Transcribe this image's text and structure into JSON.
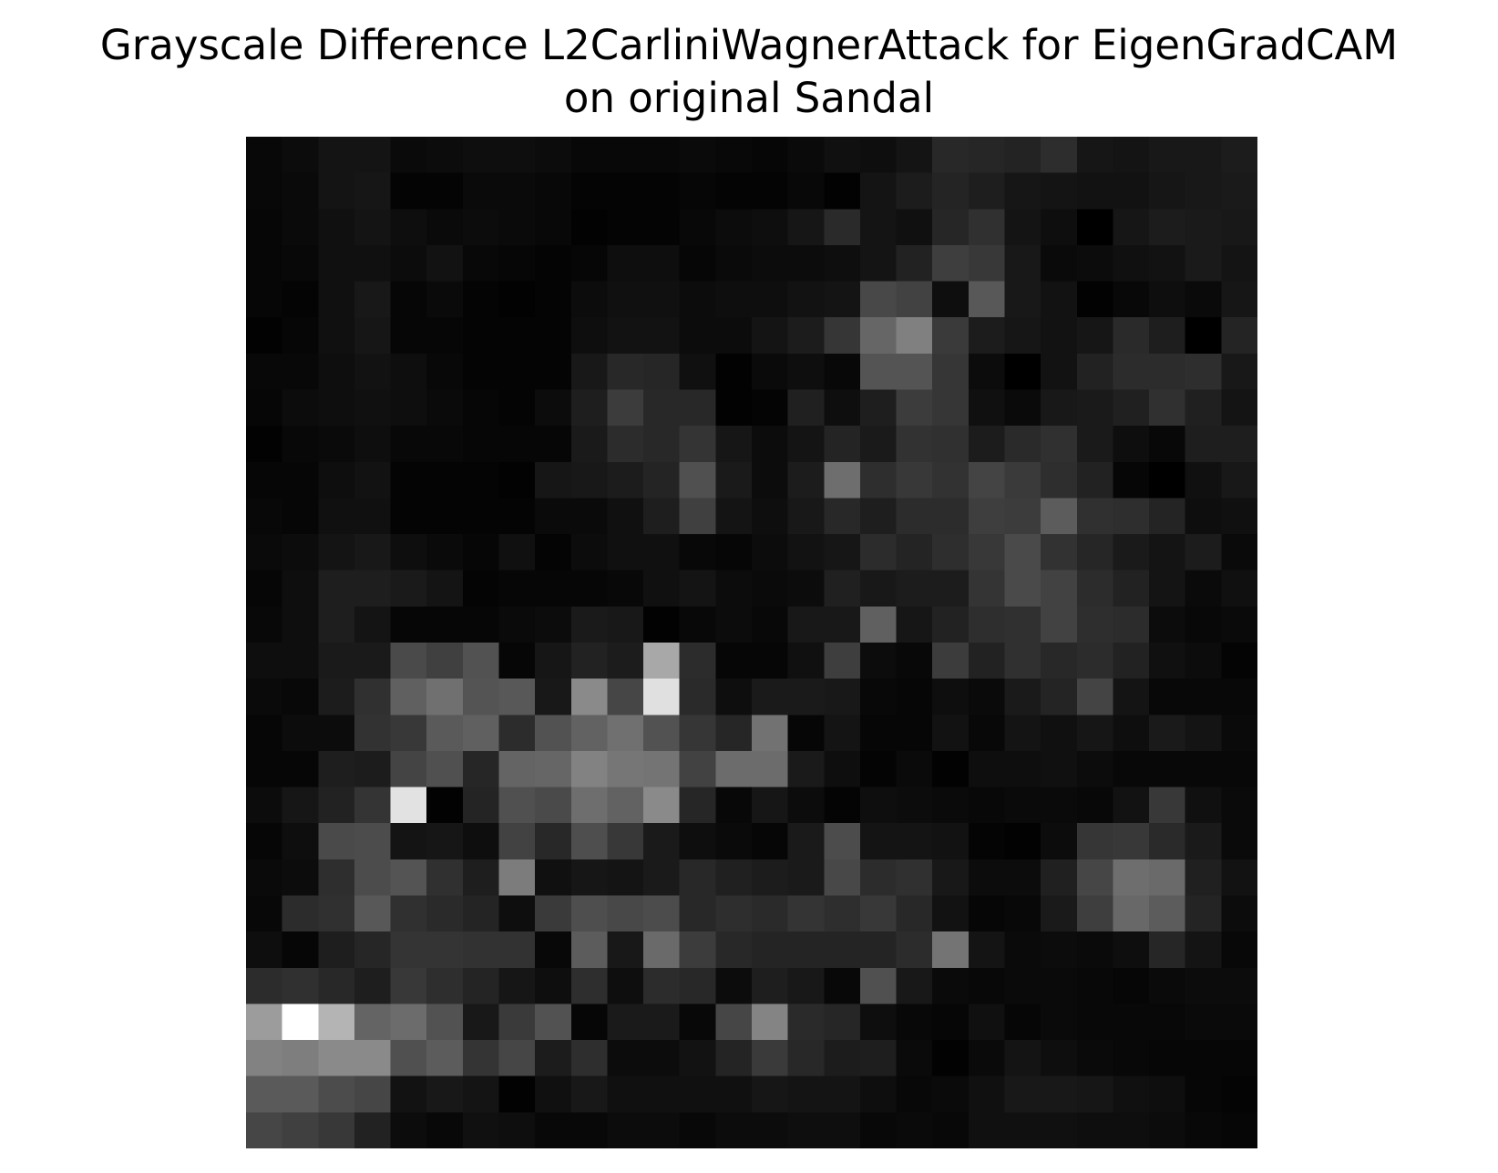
{
  "title_lines": [
    "Grayscale Difference L2CarliniWagnerAttack for EigenGradCAM",
    "on original Sandal"
  ],
  "chart_data": {
    "type": "heatmap",
    "title": "Grayscale Difference L2CarliniWagnerAttack for EigenGradCAM on original Sandal",
    "colormap": "gray",
    "axes_visible": false,
    "rows": 28,
    "cols": 28,
    "value_range": [
      0,
      255
    ],
    "values": [
      [
        8,
        12,
        20,
        20,
        10,
        12,
        14,
        14,
        12,
        8,
        8,
        8,
        10,
        8,
        6,
        10,
        16,
        14,
        20,
        40,
        38,
        35,
        45,
        22,
        20,
        24,
        24,
        28
      ],
      [
        8,
        10,
        20,
        22,
        4,
        4,
        10,
        10,
        8,
        4,
        4,
        4,
        6,
        4,
        4,
        8,
        2,
        20,
        28,
        36,
        30,
        22,
        20,
        18,
        18,
        22,
        24,
        26
      ],
      [
        6,
        10,
        16,
        20,
        14,
        10,
        12,
        10,
        8,
        2,
        4,
        4,
        8,
        12,
        14,
        22,
        42,
        20,
        16,
        38,
        48,
        20,
        14,
        0,
        22,
        28,
        26,
        24
      ],
      [
        6,
        8,
        16,
        16,
        12,
        18,
        8,
        6,
        4,
        6,
        14,
        14,
        6,
        10,
        12,
        12,
        14,
        20,
        34,
        62,
        56,
        24,
        10,
        12,
        16,
        18,
        26,
        20
      ],
      [
        6,
        4,
        16,
        24,
        6,
        10,
        4,
        2,
        4,
        12,
        16,
        16,
        12,
        14,
        14,
        18,
        20,
        72,
        66,
        14,
        88,
        24,
        18,
        2,
        8,
        14,
        10,
        22
      ],
      [
        2,
        6,
        16,
        22,
        6,
        6,
        4,
        4,
        4,
        14,
        18,
        18,
        12,
        12,
        20,
        28,
        54,
        102,
        128,
        58,
        28,
        22,
        18,
        22,
        42,
        30,
        0,
        36
      ],
      [
        8,
        8,
        14,
        18,
        14,
        8,
        4,
        4,
        4,
        24,
        40,
        38,
        16,
        2,
        10,
        14,
        8,
        84,
        84,
        54,
        12,
        0,
        18,
        34,
        44,
        44,
        46,
        24
      ],
      [
        6,
        12,
        14,
        16,
        14,
        10,
        6,
        4,
        12,
        30,
        60,
        40,
        40,
        2,
        4,
        32,
        14,
        30,
        60,
        54,
        16,
        10,
        24,
        26,
        32,
        48,
        32,
        20
      ],
      [
        2,
        8,
        10,
        14,
        8,
        8,
        6,
        6,
        6,
        26,
        44,
        40,
        52,
        22,
        12,
        20,
        36,
        26,
        50,
        48,
        28,
        42,
        48,
        26,
        14,
        8,
        30,
        30
      ],
      [
        6,
        6,
        14,
        18,
        4,
        4,
        4,
        2,
        22,
        24,
        28,
        36,
        80,
        26,
        12,
        28,
        110,
        46,
        56,
        50,
        68,
        58,
        46,
        34,
        6,
        0,
        16,
        24
      ],
      [
        8,
        6,
        16,
        16,
        4,
        4,
        4,
        4,
        10,
        10,
        16,
        30,
        64,
        20,
        14,
        24,
        40,
        30,
        44,
        44,
        62,
        60,
        92,
        48,
        46,
        36,
        14,
        16
      ],
      [
        10,
        12,
        20,
        24,
        14,
        10,
        6,
        16,
        4,
        12,
        16,
        16,
        8,
        6,
        12,
        18,
        22,
        44,
        36,
        46,
        56,
        74,
        50,
        38,
        26,
        20,
        28,
        10
      ],
      [
        6,
        14,
        30,
        30,
        26,
        20,
        4,
        6,
        6,
        6,
        8,
        16,
        20,
        12,
        10,
        12,
        32,
        24,
        28,
        28,
        52,
        74,
        66,
        44,
        34,
        20,
        10,
        16
      ],
      [
        8,
        14,
        30,
        20,
        6,
        6,
        6,
        10,
        12,
        26,
        24,
        2,
        8,
        12,
        8,
        24,
        24,
        96,
        22,
        34,
        46,
        48,
        66,
        46,
        44,
        12,
        8,
        10
      ],
      [
        14,
        14,
        26,
        26,
        74,
        64,
        82,
        6,
        22,
        34,
        28,
        168,
        44,
        6,
        6,
        16,
        62,
        12,
        8,
        60,
        34,
        48,
        40,
        44,
        34,
        16,
        12,
        4
      ],
      [
        10,
        8,
        28,
        48,
        96,
        112,
        84,
        88,
        24,
        138,
        70,
        224,
        42,
        14,
        26,
        26,
        24,
        8,
        6,
        14,
        10,
        26,
        36,
        68,
        20,
        8,
        8,
        8
      ],
      [
        6,
        12,
        12,
        50,
        56,
        90,
        96,
        44,
        82,
        98,
        112,
        82,
        54,
        38,
        114,
        6,
        20,
        6,
        6,
        18,
        8,
        20,
        16,
        22,
        14,
        26,
        20,
        10
      ],
      [
        6,
        6,
        30,
        28,
        68,
        80,
        38,
        100,
        102,
        130,
        118,
        116,
        66,
        108,
        108,
        26,
        14,
        4,
        10,
        2,
        14,
        14,
        16,
        12,
        8,
        8,
        8,
        8
      ],
      [
        12,
        22,
        34,
        52,
        226,
        2,
        36,
        80,
        74,
        110,
        98,
        138,
        38,
        8,
        22,
        12,
        4,
        14,
        12,
        10,
        8,
        10,
        10,
        8,
        18,
        56,
        16,
        10
      ],
      [
        6,
        14,
        74,
        76,
        20,
        22,
        14,
        66,
        40,
        78,
        56,
        26,
        14,
        10,
        6,
        26,
        76,
        20,
        20,
        18,
        4,
        2,
        12,
        54,
        56,
        42,
        26,
        10
      ],
      [
        10,
        12,
        46,
        76,
        84,
        48,
        30,
        124,
        16,
        22,
        20,
        26,
        40,
        32,
        28,
        26,
        72,
        44,
        48,
        24,
        12,
        12,
        32,
        70,
        110,
        106,
        32,
        18
      ],
      [
        8,
        44,
        48,
        88,
        48,
        42,
        36,
        14,
        58,
        78,
        72,
        76,
        40,
        46,
        42,
        52,
        46,
        56,
        40,
        18,
        6,
        8,
        26,
        62,
        104,
        92,
        36,
        12
      ],
      [
        14,
        6,
        30,
        38,
        52,
        52,
        50,
        50,
        8,
        92,
        24,
        106,
        60,
        40,
        36,
        36,
        36,
        36,
        44,
        116,
        20,
        10,
        12,
        10,
        14,
        38,
        20,
        8
      ],
      [
        44,
        48,
        40,
        30,
        56,
        46,
        36,
        22,
        14,
        46,
        14,
        44,
        40,
        12,
        30,
        24,
        8,
        80,
        24,
        10,
        8,
        10,
        10,
        8,
        6,
        10,
        12,
        12
      ],
      [
        156,
        255,
        180,
        100,
        108,
        82,
        24,
        58,
        82,
        6,
        26,
        26,
        8,
        70,
        132,
        42,
        38,
        14,
        8,
        6,
        16,
        6,
        10,
        8,
        8,
        8,
        10,
        10
      ],
      [
        130,
        126,
        138,
        138,
        80,
        92,
        52,
        70,
        28,
        46,
        12,
        12,
        18,
        36,
        58,
        40,
        28,
        30,
        10,
        2,
        10,
        20,
        14,
        10,
        8,
        6,
        6,
        6
      ],
      [
        90,
        90,
        76,
        70,
        18,
        24,
        20,
        2,
        16,
        24,
        16,
        16,
        16,
        16,
        22,
        20,
        20,
        14,
        8,
        10,
        16,
        24,
        24,
        22,
        16,
        14,
        6,
        4
      ],
      [
        70,
        64,
        56,
        34,
        12,
        8,
        16,
        14,
        8,
        8,
        12,
        12,
        8,
        12,
        12,
        14,
        14,
        8,
        10,
        8,
        16,
        16,
        16,
        14,
        14,
        12,
        8,
        6
      ]
    ]
  }
}
